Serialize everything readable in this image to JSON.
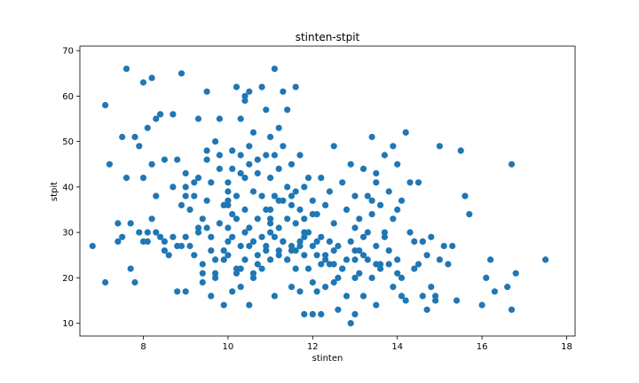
{
  "chart_data": {
    "type": "scatter",
    "title": "stinten-stpit",
    "xlabel": "stinten",
    "ylabel": "stpit",
    "xlim": [
      6.5,
      18.2
    ],
    "ylim": [
      7.2,
      71
    ],
    "xticks": [
      8,
      10,
      12,
      14,
      16,
      18
    ],
    "yticks": [
      10,
      20,
      30,
      40,
      50,
      60,
      70
    ],
    "grid": false,
    "color": "#1f77b4",
    "series": [
      {
        "x": [
          6.8,
          7.1,
          7.2,
          7.4,
          7.4,
          7.5,
          7.6,
          7.6,
          7.7,
          7.8,
          7.8,
          7.9,
          8.0,
          8.0,
          8.1,
          8.1,
          8.2,
          8.2,
          8.3,
          8.3,
          8.4,
          8.5,
          8.5,
          8.6,
          8.7,
          8.7,
          8.8,
          8.8,
          8.9,
          8.9,
          9.0,
          9.0,
          9.0,
          9.1,
          9.2,
          9.2,
          9.3,
          9.3,
          9.3,
          9.4,
          9.4,
          9.4,
          9.5,
          9.5,
          9.5,
          9.6,
          9.6,
          9.6,
          9.7,
          9.7,
          9.8,
          9.8,
          9.8,
          9.9,
          9.9,
          9.9,
          10.0,
          10.0,
          10.0,
          10.0,
          10.1,
          10.1,
          10.1,
          10.1,
          10.2,
          10.2,
          10.2,
          10.2,
          10.3,
          10.3,
          10.3,
          10.3,
          10.4,
          10.4,
          10.4,
          10.4,
          10.5,
          10.5,
          10.5,
          10.5,
          10.6,
          10.6,
          10.6,
          10.6,
          10.7,
          10.7,
          10.7,
          10.7,
          10.8,
          10.8,
          10.8,
          10.8,
          10.9,
          10.9,
          10.9,
          10.9,
          11.0,
          11.0,
          11.0,
          11.0,
          11.1,
          11.1,
          11.1,
          11.1,
          11.2,
          11.2,
          11.2,
          11.2,
          11.3,
          11.3,
          11.3,
          11.3,
          11.4,
          11.4,
          11.4,
          11.4,
          11.5,
          11.5,
          11.5,
          11.5,
          11.6,
          11.6,
          11.6,
          11.6,
          11.7,
          11.7,
          11.7,
          11.7,
          11.8,
          11.8,
          11.8,
          11.8,
          11.9,
          11.9,
          11.9,
          12.0,
          12.0,
          12.0,
          12.1,
          12.1,
          12.1,
          12.2,
          12.2,
          12.2,
          12.3,
          12.3,
          12.3,
          12.4,
          12.4,
          12.5,
          12.5,
          12.5,
          12.6,
          12.6,
          12.7,
          12.7,
          12.8,
          12.8,
          12.9,
          12.9,
          12.9,
          13.0,
          13.0,
          13.0,
          13.1,
          13.1,
          13.2,
          13.2,
          13.2,
          13.3,
          13.3,
          13.4,
          13.4,
          13.4,
          13.5,
          13.5,
          13.5,
          13.6,
          13.6,
          13.7,
          13.7,
          13.8,
          13.8,
          13.9,
          13.9,
          14.0,
          14.0,
          14.1,
          14.1,
          14.2,
          14.3,
          14.3,
          14.4,
          14.5,
          14.6,
          14.6,
          14.7,
          14.8,
          14.9,
          15.0,
          15.2,
          15.3,
          15.5,
          15.6,
          15.7,
          16.0,
          16.1,
          16.2,
          16.3,
          16.6,
          16.7,
          16.7,
          16.8,
          17.5,
          7.1,
          7.7,
          7.9,
          8.1,
          8.3,
          8.7,
          9.0,
          9.6,
          9.8,
          10.1,
          10.3,
          10.4,
          11.1,
          11.2,
          11.6,
          12.5,
          13.0,
          13.4,
          13.9,
          14.1,
          14.7,
          15.4,
          8.9,
          9.2,
          9.5,
          9.7,
          10.0,
          10.4,
          10.6,
          11.0,
          11.3,
          11.5,
          11.8,
          12.1,
          12.4,
          12.8,
          13.1,
          13.6,
          14.0,
          14.5,
          14.8,
          15.1,
          8.2,
          8.5,
          9.1,
          9.4,
          9.9,
          10.2,
          10.5,
          10.9,
          11.2,
          11.7,
          12.0,
          12.3,
          12.7,
          13.2,
          13.5,
          13.8,
          14.2,
          14.6,
          15.0,
          7.5,
          8.0,
          8.4,
          8.8,
          9.3,
          9.7,
          10.0,
          10.3,
          10.7,
          11.0,
          11.4,
          11.8,
          12.2,
          12.6,
          13.0,
          13.3,
          13.7,
          14.4,
          14.9,
          9.0,
          9.5,
          10.0,
          10.5,
          11.0,
          11.5,
          12.0,
          12.5,
          13.0,
          13.5,
          14.0
        ],
        "y": [
          27.0,
          19.0,
          45.0,
          28.0,
          32.0,
          51.0,
          66.0,
          42.0,
          32.0,
          19.0,
          51.0,
          30.0,
          63.0,
          42.0,
          28.0,
          53.0,
          64.0,
          45.0,
          55.0,
          38.0,
          56.0,
          46.0,
          28.0,
          25.0,
          40.0,
          56.0,
          46.0,
          17.0,
          65.0,
          27.0,
          29.0,
          40.0,
          17.0,
          35.0,
          38.0,
          25.0,
          30.0,
          42.0,
          55.0,
          19.0,
          23.0,
          33.0,
          37.0,
          46.0,
          61.0,
          29.0,
          16.0,
          41.0,
          50.0,
          21.0,
          55.0,
          44.0,
          32.0,
          36.0,
          24.0,
          14.0,
          28.0,
          41.0,
          36.0,
          25.0,
          17.0,
          44.0,
          48.0,
          29.0,
          62.0,
          38.0,
          22.0,
          33.0,
          55.0,
          47.0,
          27.0,
          18.0,
          59.0,
          35.0,
          42.0,
          24.0,
          61.0,
          45.0,
          31.0,
          14.0,
          39.0,
          28.0,
          52.0,
          20.0,
          46.0,
          33.0,
          25.0,
          43.0,
          62.0,
          38.0,
          29.0,
          22.0,
          57.0,
          47.0,
          35.0,
          27.0,
          51.0,
          42.0,
          33.0,
          24.0,
          66.0,
          38.0,
          29.0,
          16.0,
          53.0,
          44.0,
          31.0,
          25.0,
          61.0,
          49.0,
          37.0,
          28.0,
          57.0,
          40.0,
          33.0,
          24.0,
          45.0,
          36.0,
          27.0,
          18.0,
          62.0,
          39.0,
          32.0,
          22.0,
          47.0,
          35.0,
          28.0,
          17.0,
          40.0,
          33.0,
          25.0,
          12.0,
          42.0,
          30.0,
          22.0,
          37.0,
          27.0,
          12.0,
          34.0,
          25.0,
          17.0,
          42.0,
          29.0,
          12.0,
          36.0,
          24.0,
          18.0,
          39.0,
          23.0,
          49.0,
          32.0,
          19.0,
          27.0,
          13.0,
          41.0,
          22.0,
          35.0,
          16.0,
          45.0,
          28.0,
          10.0,
          38.0,
          24.0,
          12.0,
          33.0,
          21.0,
          44.0,
          29.0,
          16.0,
          38.0,
          24.0,
          51.0,
          34.0,
          20.0,
          41.0,
          27.0,
          14.0,
          36.0,
          22.0,
          47.0,
          30.0,
          39.0,
          26.0,
          33.0,
          18.0,
          45.0,
          24.0,
          37.0,
          20.0,
          52.0,
          30.0,
          41.0,
          28.0,
          23.0,
          16.0,
          28.0,
          25.0,
          18.0,
          15.0,
          49.0,
          23.0,
          27.0,
          48.0,
          38.0,
          34.0,
          14.0,
          20.0,
          24.0,
          17.0,
          18.0,
          45.0,
          13.0,
          21.0,
          24.0,
          58.0,
          22.0,
          49.0,
          30.0,
          30.0,
          29.0,
          38.0,
          26.0,
          47.0,
          34.0,
          43.0,
          60.0,
          47.0,
          37.0,
          26.0,
          23.0,
          20.0,
          37.0,
          49.0,
          16.0,
          13.0,
          15.0,
          36.0,
          41.0,
          31.0,
          20.0,
          31.0,
          30.0,
          21.0,
          30.0,
          28.0,
          26.0,
          30.0,
          28.0,
          28.0,
          24.0,
          26.0,
          23.0,
          21.0,
          41.0,
          29.0,
          27.0,
          33.0,
          26.0,
          27.0,
          21.0,
          26.0,
          21.0,
          27.0,
          26.0,
          26.0,
          27.0,
          19.0,
          25.0,
          22.0,
          25.0,
          23.0,
          23.0,
          15.0,
          28.0,
          24.0,
          29.0,
          28.0,
          29.0,
          27.0,
          31.0,
          24.0,
          39.0,
          22.0,
          23.0,
          32.0,
          24.0,
          29.0,
          23.0,
          20.0,
          26.0,
          30.0,
          29.0,
          22.0,
          16.0,
          43.0,
          48.0,
          37.0,
          49.0,
          35.0,
          38.0,
          34.0,
          26.0,
          31.0,
          43.0,
          35.0
        ]
      }
    ]
  }
}
